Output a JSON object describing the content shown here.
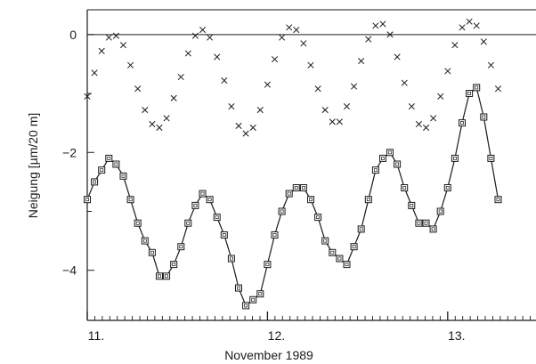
{
  "chart_data": {
    "type": "line",
    "title": "",
    "xlabel": "November 1989",
    "ylabel": "Neigung [µm/20 m]",
    "xlim": [
      11.0,
      13.49
    ],
    "ylim": [
      -4.85,
      0.42
    ],
    "x_ticks": [
      {
        "value": 11,
        "label": "11."
      },
      {
        "value": 12,
        "label": "12."
      },
      {
        "value": 13,
        "label": "13."
      }
    ],
    "y_ticks": [
      {
        "value": 0,
        "label": "0"
      },
      {
        "value": -2,
        "label": "−2"
      },
      {
        "value": -4,
        "label": "−4"
      }
    ],
    "reference_line_y": 0,
    "grid": false,
    "legend": "none",
    "series": [
      {
        "marker": "square",
        "line": true,
        "color": "#1a1a1a",
        "points": [
          [
            11.0,
            -2.8
          ],
          [
            11.04,
            -2.5
          ],
          [
            11.08,
            -2.3
          ],
          [
            11.12,
            -2.1
          ],
          [
            11.16,
            -2.2
          ],
          [
            11.2,
            -2.4
          ],
          [
            11.24,
            -2.8
          ],
          [
            11.28,
            -3.2
          ],
          [
            11.32,
            -3.5
          ],
          [
            11.36,
            -3.7
          ],
          [
            11.4,
            -4.1
          ],
          [
            11.44,
            -4.1
          ],
          [
            11.48,
            -3.9
          ],
          [
            11.52,
            -3.6
          ],
          [
            11.56,
            -3.2
          ],
          [
            11.6,
            -2.9
          ],
          [
            11.64,
            -2.7
          ],
          [
            11.68,
            -2.8
          ],
          [
            11.72,
            -3.1
          ],
          [
            11.76,
            -3.4
          ],
          [
            11.8,
            -3.8
          ],
          [
            11.84,
            -4.3
          ],
          [
            11.88,
            -4.6
          ],
          [
            11.92,
            -4.5
          ],
          [
            11.96,
            -4.4
          ],
          [
            12.0,
            -3.9
          ],
          [
            12.04,
            -3.4
          ],
          [
            12.08,
            -3.0
          ],
          [
            12.12,
            -2.7
          ],
          [
            12.16,
            -2.6
          ],
          [
            12.2,
            -2.6
          ],
          [
            12.24,
            -2.8
          ],
          [
            12.28,
            -3.1
          ],
          [
            12.32,
            -3.5
          ],
          [
            12.36,
            -3.7
          ],
          [
            12.4,
            -3.8
          ],
          [
            12.44,
            -3.9
          ],
          [
            12.48,
            -3.6
          ],
          [
            12.52,
            -3.3
          ],
          [
            12.56,
            -2.8
          ],
          [
            12.6,
            -2.3
          ],
          [
            12.64,
            -2.1
          ],
          [
            12.68,
            -2.0
          ],
          [
            12.72,
            -2.2
          ],
          [
            12.76,
            -2.6
          ],
          [
            12.8,
            -2.9
          ],
          [
            12.84,
            -3.2
          ],
          [
            12.88,
            -3.2
          ],
          [
            12.92,
            -3.3
          ],
          [
            12.96,
            -3.0
          ],
          [
            13.0,
            -2.6
          ],
          [
            13.04,
            -2.1
          ],
          [
            13.08,
            -1.5
          ],
          [
            13.12,
            -1.0
          ],
          [
            13.16,
            -0.9
          ],
          [
            13.2,
            -1.4
          ],
          [
            13.24,
            -2.1
          ],
          [
            13.28,
            -2.8
          ]
        ]
      },
      {
        "marker": "x",
        "line": false,
        "color": "#1a1a1a",
        "points": [
          [
            11.0,
            -1.05
          ],
          [
            11.04,
            -0.65
          ],
          [
            11.08,
            -0.28
          ],
          [
            11.12,
            -0.05
          ],
          [
            11.16,
            -0.02
          ],
          [
            11.2,
            -0.18
          ],
          [
            11.24,
            -0.52
          ],
          [
            11.28,
            -0.92
          ],
          [
            11.32,
            -1.28
          ],
          [
            11.36,
            -1.52
          ],
          [
            11.4,
            -1.58
          ],
          [
            11.44,
            -1.42
          ],
          [
            11.48,
            -1.08
          ],
          [
            11.52,
            -0.72
          ],
          [
            11.56,
            -0.32
          ],
          [
            11.6,
            -0.02
          ],
          [
            11.64,
            0.08
          ],
          [
            11.68,
            -0.05
          ],
          [
            11.72,
            -0.38
          ],
          [
            11.76,
            -0.78
          ],
          [
            11.8,
            -1.22
          ],
          [
            11.84,
            -1.55
          ],
          [
            11.88,
            -1.68
          ],
          [
            11.92,
            -1.58
          ],
          [
            11.96,
            -1.28
          ],
          [
            12.0,
            -0.85
          ],
          [
            12.04,
            -0.42
          ],
          [
            12.08,
            -0.05
          ],
          [
            12.12,
            0.12
          ],
          [
            12.16,
            0.08
          ],
          [
            12.2,
            -0.15
          ],
          [
            12.24,
            -0.52
          ],
          [
            12.28,
            -0.92
          ],
          [
            12.32,
            -1.28
          ],
          [
            12.36,
            -1.48
          ],
          [
            12.4,
            -1.48
          ],
          [
            12.44,
            -1.22
          ],
          [
            12.48,
            -0.88
          ],
          [
            12.52,
            -0.45
          ],
          [
            12.56,
            -0.08
          ],
          [
            12.6,
            0.15
          ],
          [
            12.64,
            0.18
          ],
          [
            12.68,
            0.0
          ],
          [
            12.72,
            -0.38
          ],
          [
            12.76,
            -0.82
          ],
          [
            12.8,
            -1.22
          ],
          [
            12.84,
            -1.52
          ],
          [
            12.88,
            -1.58
          ],
          [
            12.92,
            -1.42
          ],
          [
            12.96,
            -1.05
          ],
          [
            13.0,
            -0.62
          ],
          [
            13.04,
            -0.18
          ],
          [
            13.08,
            0.12
          ],
          [
            13.12,
            0.22
          ],
          [
            13.16,
            0.15
          ],
          [
            13.2,
            -0.12
          ],
          [
            13.24,
            -0.52
          ],
          [
            13.28,
            -0.92
          ]
        ]
      }
    ]
  }
}
